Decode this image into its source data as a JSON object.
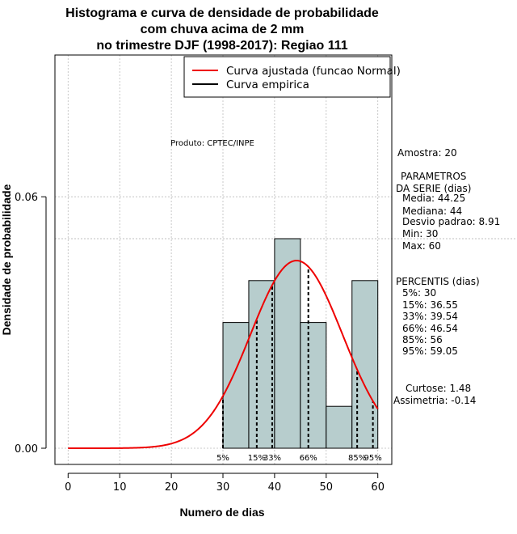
{
  "chart_data": {
    "type": "histogram",
    "title_lines": [
      "Histograma e curva de densidade de probabilidade",
      "com chuva acima de 2 mm",
      "no trimestre DJF (1998-2017): Regiao 111"
    ],
    "xlabel": "Numero de dias",
    "ylabel": "Densidade de probabilidade",
    "xlim": [
      -2,
      62
    ],
    "ylim": [
      0,
      0.094
    ],
    "x_ticks": [
      0,
      10,
      20,
      30,
      40,
      50,
      60
    ],
    "x_tick_labels": [
      "0",
      "10",
      "20",
      "30",
      "40",
      "50",
      "60"
    ],
    "y_ticks": [
      0.0,
      0.06
    ],
    "y_tick_labels": [
      "0.00",
      "0.06"
    ],
    "grid": true,
    "bins": [
      {
        "from": 30,
        "to": 35,
        "density": 0.03
      },
      {
        "from": 35,
        "to": 40,
        "density": 0.04
      },
      {
        "from": 40,
        "to": 45,
        "density": 0.05
      },
      {
        "from": 45,
        "to": 50,
        "density": 0.03
      },
      {
        "from": 50,
        "to": 55,
        "density": 0.01
      },
      {
        "from": 55,
        "to": 60,
        "density": 0.04
      }
    ],
    "reference_line_density": 0.05,
    "normal_fit": {
      "mean": 44.25,
      "sd": 8.91,
      "x_range": [
        0,
        60
      ]
    },
    "percentiles": [
      {
        "label": "5%",
        "value": 30
      },
      {
        "label": "15%",
        "value": 36.55
      },
      {
        "label": "33%",
        "value": 39.54
      },
      {
        "label": "66%",
        "value": 46.54
      },
      {
        "label": "85%",
        "value": 56
      },
      {
        "label": "95%",
        "value": 59.05
      }
    ],
    "legend": [
      {
        "label": "Curva ajustada (funcao Normal)",
        "color": "#ee0000"
      },
      {
        "label": "Curva empirica",
        "color": "#000000"
      }
    ],
    "product_label": "Produto: CPTEC/INPE"
  },
  "colors": {
    "bar_fill": "#b7cdcd",
    "curve": "#ee0000",
    "grid": "#bbbbbb"
  },
  "stats": {
    "amostra": "Amostra: 20",
    "params_title_1": "PARAMETROS",
    "params_title_2": "DA SERIE (dias)",
    "media": "Media: 44.25",
    "mediana": "Mediana: 44",
    "desvio": "Desvio padrao: 8.91",
    "min": "Min: 30",
    "max": "Max: 60",
    "percentis_title": "PERCENTIS (dias)",
    "p5": "5%: 30",
    "p15": "15%: 36.55",
    "p33": "33%: 39.54",
    "p66": "66%: 46.54",
    "p85": "85%: 56",
    "p95": "95%: 59.05",
    "curtose": "Curtose: 1.48",
    "assimetria": "Assimetria: -0.14"
  }
}
